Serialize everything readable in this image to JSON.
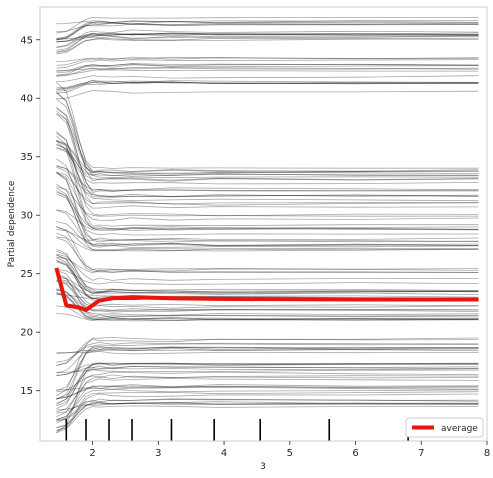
{
  "chart_data": {
    "type": "line",
    "plot_kind": "ICE with average partial dependence",
    "title": "",
    "xlabel": "3",
    "ylabel": "Partial dependence",
    "xlim": [
      1.2,
      8.0
    ],
    "ylim": [
      10.7,
      47.8
    ],
    "x_ticks": [
      2,
      3,
      4,
      5,
      6,
      7,
      8
    ],
    "y_ticks": [
      15,
      20,
      25,
      30,
      35,
      40,
      45
    ],
    "grid": false,
    "legend": {
      "position": "bottom-right",
      "entries": [
        "average"
      ]
    },
    "colors": {
      "ice_lines": "#000000",
      "average": "#e8160c",
      "axes": "#262626",
      "frame": "#cccccc"
    },
    "grid_x": [
      1.45,
      1.6,
      1.7,
      1.8,
      1.9,
      2.0,
      2.1,
      2.3,
      2.6,
      3.2,
      3.9,
      6.0,
      7.87
    ],
    "rug_x": [
      1.6,
      1.9,
      2.25,
      2.6,
      3.2,
      3.85,
      4.55,
      5.6,
      6.8
    ],
    "ice_summary": {
      "n_lines_drawn": 140,
      "start_range": [
        11.0,
        41.5
      ],
      "end_range": [
        13.5,
        46.5
      ]
    },
    "average": {
      "name": "average",
      "x": [
        1.45,
        1.6,
        1.7,
        1.8,
        1.9,
        2.0,
        2.1,
        2.3,
        2.6,
        3.2,
        3.9,
        6.0,
        7.87
      ],
      "y": [
        25.5,
        22.3,
        22.2,
        22.1,
        21.9,
        22.3,
        22.7,
        22.9,
        23.0,
        22.9,
        22.85,
        22.8,
        22.8
      ]
    }
  }
}
